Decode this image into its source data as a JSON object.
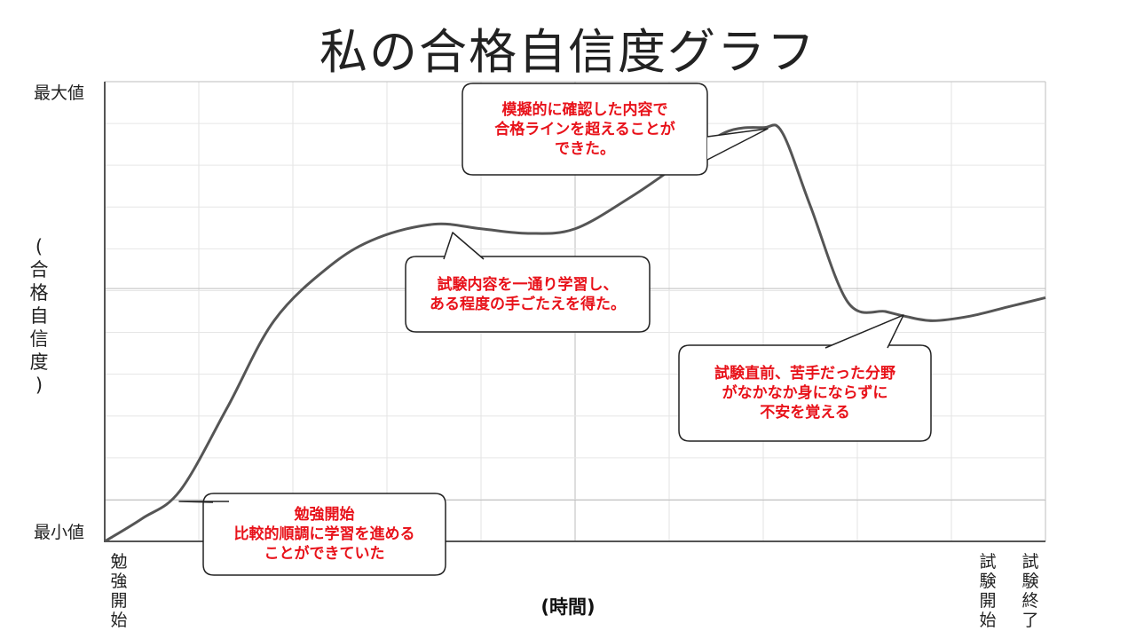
{
  "chart_data": {
    "type": "line",
    "title": "私の合格自信度グラフ",
    "ylabel": "(合格自信度)",
    "xlabel": "(時間)",
    "y_tick_labels": {
      "max": "最大値",
      "min": "最小値"
    },
    "x_tick_labels": {
      "start": "勉強開始",
      "exam_start": "試験開始",
      "exam_end": "試験終了"
    },
    "grid": true,
    "series": [
      {
        "x": [
          0,
          0.04,
          0.08,
          0.13,
          0.18,
          0.24,
          0.29,
          0.35,
          0.4,
          0.45,
          0.5,
          0.56,
          0.61,
          0.66,
          0.7,
          0.72,
          0.75,
          0.79,
          0.83,
          0.85,
          0.88,
          0.92,
          0.96,
          1.0
        ],
        "y": [
          0,
          0.05,
          0.11,
          0.29,
          0.48,
          0.6,
          0.66,
          0.69,
          0.68,
          0.67,
          0.68,
          0.75,
          0.82,
          0.89,
          0.9,
          0.89,
          0.73,
          0.52,
          0.5,
          0.49,
          0.48,
          0.49,
          0.51,
          0.53
        ]
      }
    ],
    "annotations": [
      {
        "lines": [
          "勉強開始",
          "比較的順調に学習を進める",
          "ことができていた"
        ]
      },
      {
        "lines": [
          "試験内容を一通り学習し、",
          "ある程度の手ごたえを得た。"
        ]
      },
      {
        "lines": [
          "模擬的に確認した内容で",
          "合格ラインを超えることが",
          "できた。"
        ]
      },
      {
        "lines": [
          "試験直前、苦手だった分野",
          "がなかなか身にならずに",
          "不安を覚える"
        ]
      }
    ]
  }
}
